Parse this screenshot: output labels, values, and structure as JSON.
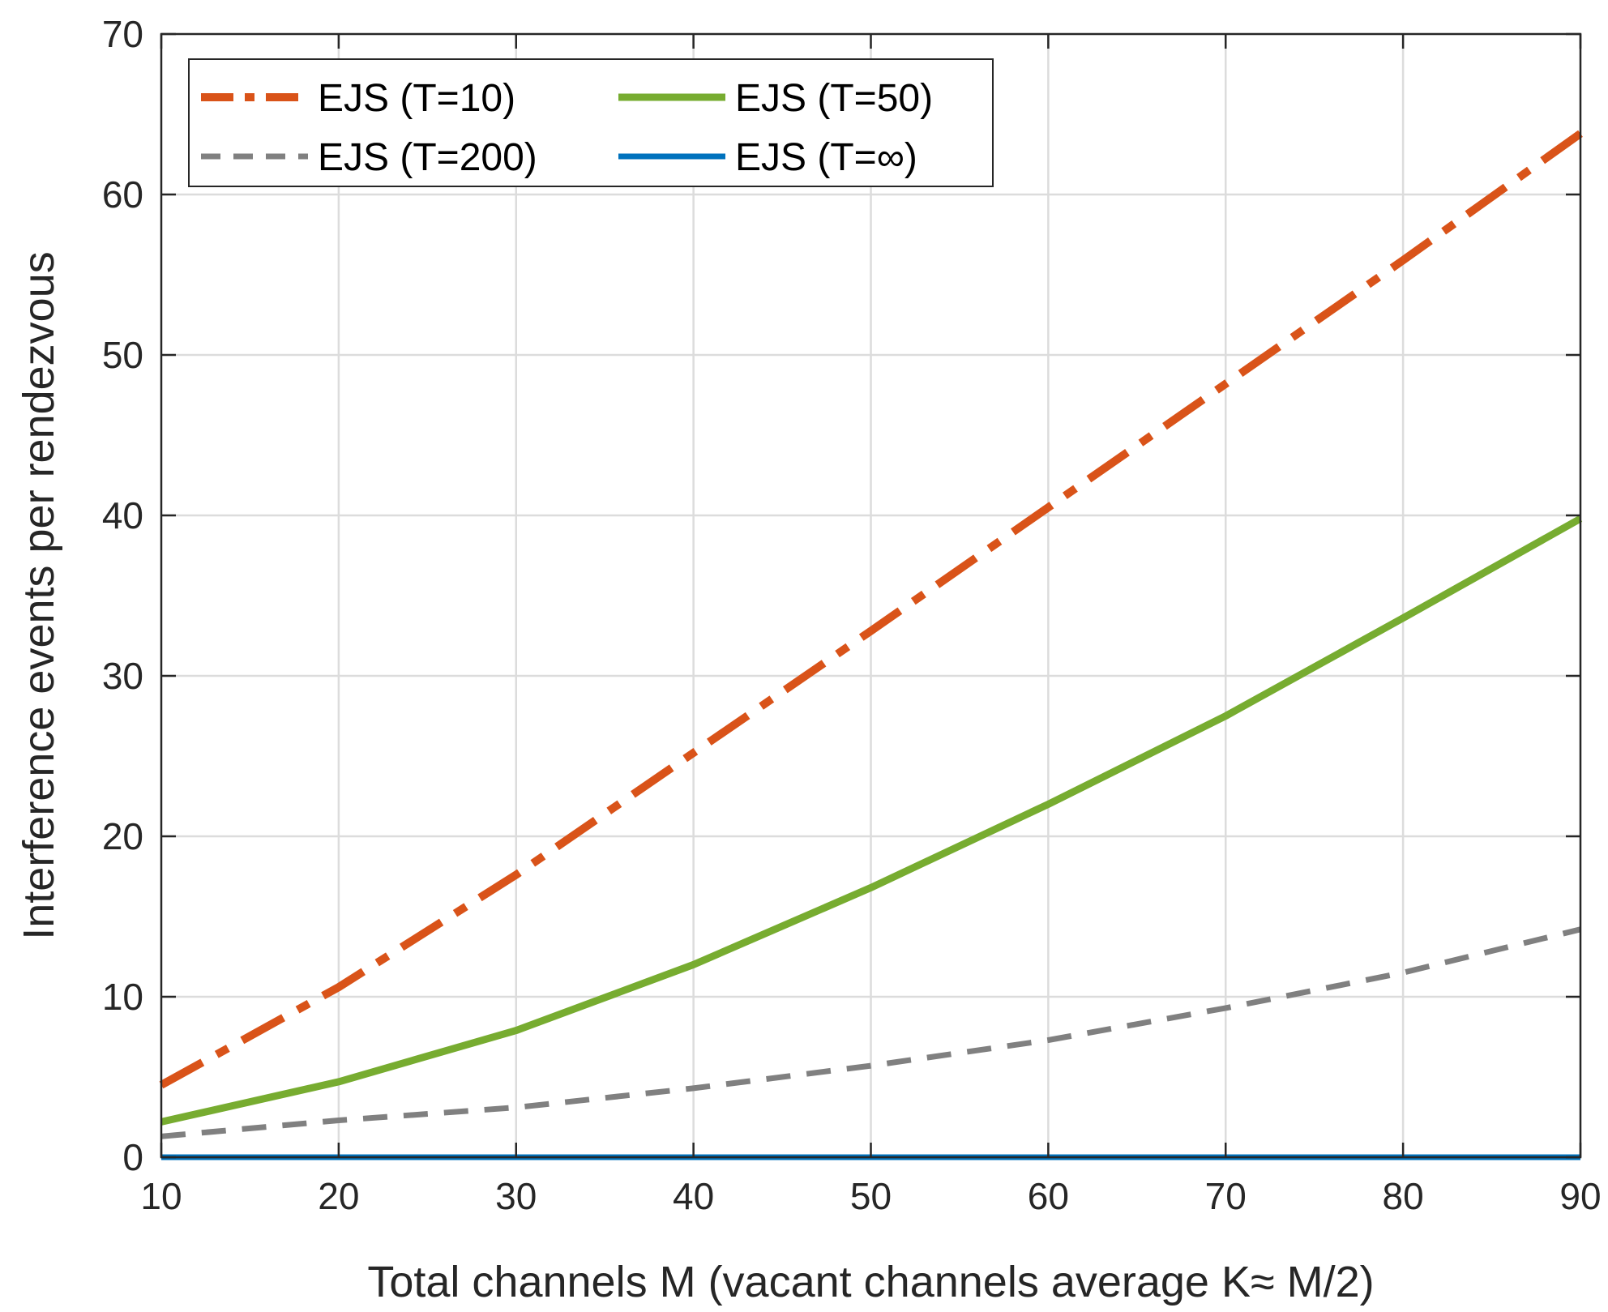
{
  "chart_data": {
    "type": "line",
    "xlabel": "Total channels M (vacant channels average K≈ M/2)",
    "ylabel": "Interference events per rendezvous",
    "xlim": [
      10,
      90
    ],
    "ylim": [
      0,
      70
    ],
    "xticks": [
      10,
      20,
      30,
      40,
      50,
      60,
      70,
      80,
      90
    ],
    "yticks": [
      0,
      10,
      20,
      30,
      40,
      50,
      60,
      70
    ],
    "grid": true,
    "legend_position": "top-left",
    "x": [
      10,
      20,
      30,
      40,
      50,
      60,
      70,
      80,
      90
    ],
    "series": [
      {
        "name": "EJS (T=10)",
        "color": "#D95319",
        "dash": "dashdot",
        "values": [
          4.5,
          10.6,
          17.6,
          25.2,
          32.8,
          40.5,
          48.2,
          55.9,
          63.8
        ]
      },
      {
        "name": "EJS (T=50)",
        "color": "#77AC30",
        "dash": "solid",
        "values": [
          2.2,
          4.7,
          7.9,
          12.0,
          16.8,
          22.0,
          27.5,
          33.6,
          39.8
        ]
      },
      {
        "name": "EJS (T=200)",
        "color": "#808080",
        "dash": "dashed",
        "values": [
          1.3,
          2.3,
          3.1,
          4.3,
          5.7,
          7.3,
          9.3,
          11.5,
          14.2
        ]
      },
      {
        "name": "EJS (T=∞)",
        "color": "#0072BD",
        "dash": "solid",
        "values": [
          0,
          0,
          0,
          0,
          0,
          0,
          0,
          0,
          0
        ]
      }
    ]
  }
}
